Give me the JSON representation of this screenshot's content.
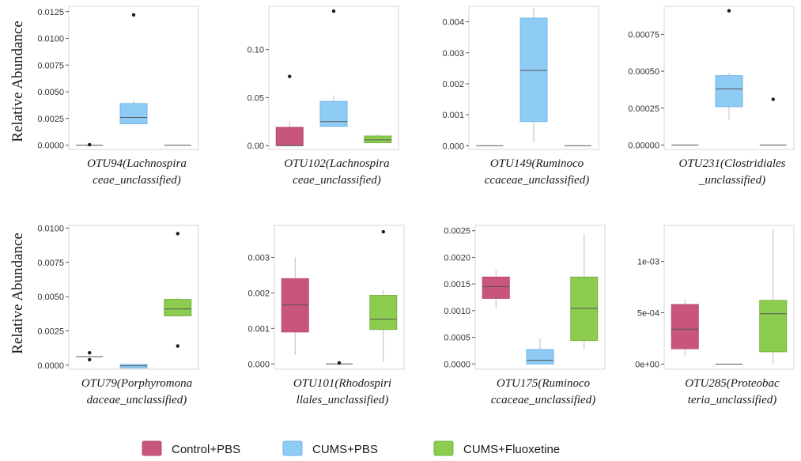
{
  "colors": {
    "groups": [
      "#c8557e",
      "#8ecbf5",
      "#8ccd4f"
    ],
    "box_stroke": [
      "#b74a72",
      "#6fb5e6",
      "#76b33f"
    ],
    "median": "#555555",
    "whisker": "#bdbdbd"
  },
  "ylabel": "Relative Abundance",
  "legend": {
    "position": "bottom",
    "items": [
      "Control+PBS",
      "CUMS+PBS",
      "CUMS+Fluoxetine"
    ]
  },
  "chart_data": [
    {
      "type": "box",
      "title_lines": [
        "OTU94(Lachnospira",
        "ceae_unclassified)"
      ],
      "ylim": [
        -0.0004,
        0.013
      ],
      "ticks": [
        0,
        0.0025,
        0.005,
        0.0075,
        0.01,
        0.0125
      ],
      "tick_labels": [
        "0.0000",
        "0.0025",
        "0.0050",
        "0.0075",
        "0.0100",
        "0.0125"
      ],
      "boxes": [
        {
          "group": "Control+PBS",
          "min": 0,
          "q1": 0,
          "median": 0,
          "q3": 0,
          "max": 0,
          "outliers": [
            5e-05
          ]
        },
        {
          "group": "CUMS+PBS",
          "min": 0.002,
          "q1": 0.002,
          "median": 0.0026,
          "q3": 0.0039,
          "max": 0.0042,
          "outliers": [
            0.0122
          ]
        },
        {
          "group": "CUMS+Fluoxetine",
          "min": 0,
          "q1": 0,
          "median": 0,
          "q3": 0,
          "max": 0,
          "outliers": []
        }
      ]
    },
    {
      "type": "box",
      "title_lines": [
        "OTU102(Lachnospira",
        "ceae_unclassified)"
      ],
      "ylim": [
        -0.004,
        0.145
      ],
      "ticks": [
        0,
        0.05,
        0.1
      ],
      "tick_labels": [
        "0.00",
        "0.05",
        "0.10"
      ],
      "boxes": [
        {
          "group": "Control+PBS",
          "min": 0,
          "q1": 0,
          "median": 0,
          "q3": 0.019,
          "max": 0.025,
          "outliers": [
            0.072
          ]
        },
        {
          "group": "CUMS+PBS",
          "min": 0.02,
          "q1": 0.02,
          "median": 0.025,
          "q3": 0.046,
          "max": 0.052,
          "outliers": [
            0.14
          ]
        },
        {
          "group": "CUMS+Fluoxetine",
          "min": 0.002,
          "q1": 0.003,
          "median": 0.006,
          "q3": 0.01,
          "max": 0.012,
          "outliers": []
        }
      ]
    },
    {
      "type": "box",
      "title_lines": [
        "OTU149(Ruminoco",
        "ccaceae_unclassified)"
      ],
      "ylim": [
        -0.00012,
        0.0045
      ],
      "ticks": [
        0,
        0.001,
        0.002,
        0.003,
        0.004
      ],
      "tick_labels": [
        "0.000",
        "0.001",
        "0.002",
        "0.003",
        "0.004"
      ],
      "boxes": [
        {
          "group": "Control+PBS",
          "min": 0,
          "q1": 0,
          "median": 0,
          "q3": 0,
          "max": 0,
          "outliers": []
        },
        {
          "group": "CUMS+PBS",
          "min": 0.0001,
          "q1": 0.00078,
          "median": 0.00243,
          "q3": 0.00412,
          "max": 0.00445,
          "outliers": []
        },
        {
          "group": "CUMS+Fluoxetine",
          "min": 0,
          "q1": 0,
          "median": 0,
          "q3": 0,
          "max": 0,
          "outliers": []
        }
      ]
    },
    {
      "type": "box",
      "title_lines": [
        "OTU231(Clostridiales",
        "_unclassified)"
      ],
      "ylim": [
        -3e-05,
        0.00094
      ],
      "ticks": [
        0,
        0.00025,
        0.0005,
        0.00075
      ],
      "tick_labels": [
        "0.00000",
        "0.00025",
        "0.00050",
        "0.00075"
      ],
      "boxes": [
        {
          "group": "Control+PBS",
          "min": 0,
          "q1": 0,
          "median": 0,
          "q3": 0,
          "max": 0,
          "outliers": []
        },
        {
          "group": "CUMS+PBS",
          "min": 0.00017,
          "q1": 0.00026,
          "median": 0.00038,
          "q3": 0.00047,
          "max": 0.00049,
          "outliers": [
            0.00091
          ]
        },
        {
          "group": "CUMS+Fluoxetine",
          "min": 0,
          "q1": 0,
          "median": 0,
          "q3": 0,
          "max": 0,
          "outliers": [
            0.00031
          ]
        }
      ]
    },
    {
      "type": "box",
      "title_lines": [
        "OTU79(Porphyromona",
        "daceae_unclassified)"
      ],
      "ylim": [
        -0.0003,
        0.0102
      ],
      "ticks": [
        0,
        0.0025,
        0.005,
        0.0075,
        0.01
      ],
      "tick_labels": [
        "0.0000",
        "0.0025",
        "0.0050",
        "0.0075",
        "0.0100"
      ],
      "boxes": [
        {
          "group": "Control+PBS",
          "min": 0.0006,
          "q1": 0.0006,
          "median": 0.00062,
          "q3": 0.00063,
          "max": 0.00063,
          "outliers": [
            0.0009,
            0.0004
          ]
        },
        {
          "group": "CUMS+PBS",
          "min": -0.0002,
          "q1": -0.0002,
          "median": -5e-05,
          "q3": 5e-05,
          "max": 5e-05,
          "outliers": []
        },
        {
          "group": "CUMS+Fluoxetine",
          "min": 0.0036,
          "q1": 0.0036,
          "median": 0.0041,
          "q3": 0.0048,
          "max": 0.0049,
          "outliers": [
            0.0096,
            0.0014
          ]
        }
      ]
    },
    {
      "type": "box",
      "title_lines": [
        "OTU101(Rhodospiri",
        "llales_unclassified)"
      ],
      "ylim": [
        -0.00015,
        0.0039
      ],
      "ticks": [
        0,
        0.001,
        0.002,
        0.003
      ],
      "tick_labels": [
        "0.000",
        "0.001",
        "0.002",
        "0.003"
      ],
      "boxes": [
        {
          "group": "Control+PBS",
          "min": 0.00025,
          "q1": 0.0009,
          "median": 0.00166,
          "q3": 0.0024,
          "max": 0.003,
          "outliers": []
        },
        {
          "group": "CUMS+PBS",
          "min": 0,
          "q1": 0,
          "median": 0,
          "q3": 0,
          "max": 0,
          "outliers": [
            3e-05
          ]
        },
        {
          "group": "CUMS+Fluoxetine",
          "min": 5e-05,
          "q1": 0.00097,
          "median": 0.00126,
          "q3": 0.00193,
          "max": 0.00208,
          "outliers": [
            0.00372
          ]
        }
      ]
    },
    {
      "type": "box",
      "title_lines": [
        "OTU175(Ruminoco",
        "ccaceae_unclassified)"
      ],
      "ylim": [
        -0.0001,
        0.0026
      ],
      "ticks": [
        0,
        0.0005,
        0.001,
        0.0015,
        0.002,
        0.0025
      ],
      "tick_labels": [
        "0.0000",
        "0.0005",
        "0.0010",
        "0.0015",
        "0.0020",
        "0.0025"
      ],
      "boxes": [
        {
          "group": "Control+PBS",
          "min": 0.00103,
          "q1": 0.00123,
          "median": 0.00145,
          "q3": 0.00163,
          "max": 0.00176,
          "outliers": []
        },
        {
          "group": "CUMS+PBS",
          "min": 0,
          "q1": 0,
          "median": 7e-05,
          "q3": 0.00027,
          "max": 0.00048,
          "outliers": []
        },
        {
          "group": "CUMS+Fluoxetine",
          "min": 0.00027,
          "q1": 0.00044,
          "median": 0.00104,
          "q3": 0.00163,
          "max": 0.00244,
          "outliers": []
        }
      ]
    },
    {
      "type": "box",
      "title_lines": [
        "OTU285(Proteobac",
        "teria_unclassified)"
      ],
      "ylim": [
        -5e-05,
        0.00135
      ],
      "ticks": [
        0,
        0.0005,
        0.001
      ],
      "tick_labels": [
        "0e+00",
        "5e-04",
        "1e-03"
      ],
      "boxes": [
        {
          "group": "Control+PBS",
          "min": 8e-05,
          "q1": 0.00015,
          "median": 0.00034,
          "q3": 0.00058,
          "max": 0.00063,
          "outliers": []
        },
        {
          "group": "CUMS+PBS",
          "min": 0,
          "q1": 0,
          "median": 0,
          "q3": 0,
          "max": 0,
          "outliers": []
        },
        {
          "group": "CUMS+Fluoxetine",
          "min": 0,
          "q1": 0.00012,
          "median": 0.00049,
          "q3": 0.00062,
          "max": 0.00131,
          "outliers": []
        }
      ]
    }
  ]
}
